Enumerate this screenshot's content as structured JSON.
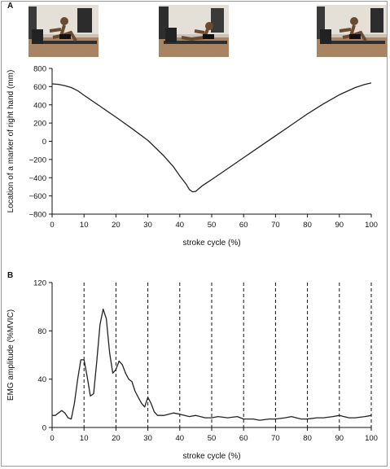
{
  "figure": {
    "panel_a_letter": "A",
    "panel_b_letter": "B"
  },
  "photos": [
    {
      "name": "photo-catch",
      "phase": "catch"
    },
    {
      "name": "photo-finish",
      "phase": "finish"
    },
    {
      "name": "photo-catch-return",
      "phase": "catch"
    }
  ],
  "chart_data": [
    {
      "type": "line",
      "xlabel": "stroke cycle (%)",
      "ylabel": "Location of a marker of right hand (mm)",
      "xlim": [
        0,
        100
      ],
      "ylim": [
        -800,
        800
      ],
      "xticks": [
        0,
        10,
        20,
        30,
        40,
        50,
        60,
        70,
        80,
        90,
        100
      ],
      "yticks": [
        800,
        600,
        400,
        200,
        0,
        -200,
        -400,
        -600,
        -800
      ],
      "ytick_labels": [
        "800",
        "600",
        "400",
        "200",
        "0",
        "−200",
        "−400",
        "−600",
        "−800"
      ],
      "grid": false,
      "series": [
        {
          "x": [
            0,
            2,
            4,
            6,
            8,
            10,
            15,
            20,
            25,
            30,
            35,
            38,
            40,
            42,
            43,
            44,
            45,
            47,
            50,
            55,
            60,
            65,
            70,
            75,
            80,
            85,
            90,
            95,
            98,
            100
          ],
          "values": [
            630,
            625,
            610,
            590,
            555,
            505,
            385,
            265,
            140,
            10,
            -160,
            -280,
            -380,
            -470,
            -530,
            -555,
            -550,
            -490,
            -420,
            -300,
            -180,
            -60,
            60,
            180,
            300,
            410,
            510,
            590,
            625,
            640
          ]
        }
      ]
    },
    {
      "type": "line",
      "xlabel": "stroke cycle (%)",
      "ylabel": "EMG amplitude (%MVIC)",
      "xlim": [
        0,
        100
      ],
      "ylim": [
        0,
        120
      ],
      "xticks": [
        0,
        10,
        20,
        30,
        40,
        50,
        60,
        70,
        80,
        90,
        100
      ],
      "yticks": [
        0,
        40,
        80,
        120
      ],
      "grid": false,
      "vlines": [
        10,
        20,
        30,
        40,
        50,
        60,
        70,
        80,
        90,
        100
      ],
      "series": [
        {
          "x": [
            0,
            1,
            2,
            3,
            4,
            5,
            6,
            7,
            8,
            9,
            10,
            11,
            12,
            13,
            14,
            15,
            16,
            17,
            18,
            19,
            20,
            21,
            22,
            23,
            24,
            25,
            26,
            27,
            28,
            29,
            30,
            31,
            32,
            33,
            35,
            38,
            40,
            43,
            45,
            48,
            50,
            52,
            55,
            58,
            60,
            63,
            65,
            68,
            70,
            73,
            75,
            78,
            80,
            83,
            85,
            88,
            90,
            93,
            95,
            98,
            100
          ],
          "values": [
            10,
            10,
            12,
            14,
            12,
            8,
            7,
            20,
            40,
            56,
            56,
            42,
            26,
            28,
            55,
            85,
            98,
            90,
            62,
            45,
            48,
            55,
            52,
            45,
            40,
            38,
            30,
            25,
            20,
            17,
            25,
            20,
            13,
            10,
            10,
            12,
            11,
            9,
            10,
            8,
            8,
            9,
            8,
            9,
            7,
            7,
            6,
            7,
            7,
            8,
            9,
            7,
            7,
            8,
            8,
            9,
            10,
            8,
            8,
            9,
            10
          ]
        }
      ]
    }
  ]
}
